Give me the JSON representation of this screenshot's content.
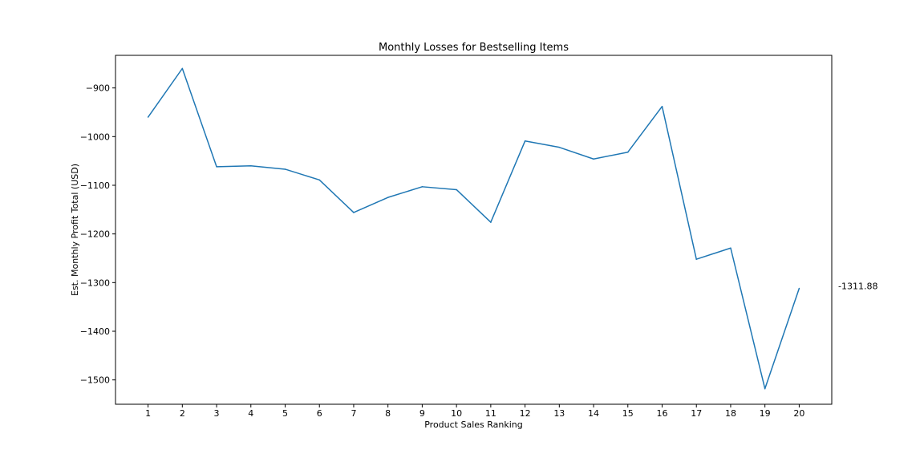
{
  "chart_data": {
    "type": "line",
    "title": "Monthly Losses for Bestselling Items",
    "xlabel": "Product Sales Ranking",
    "ylabel": "Est. Monthly Profit Total (USD)",
    "x": [
      1,
      2,
      3,
      4,
      5,
      6,
      7,
      8,
      9,
      10,
      11,
      12,
      13,
      14,
      15,
      16,
      17,
      18,
      19,
      20
    ],
    "series": [
      {
        "values": [
          -960,
          -860,
          -1062,
          -1060,
          -1067,
          -1089,
          -1156,
          -1125,
          -1103,
          -1109,
          -1176,
          -1009,
          -1022,
          -1046,
          -1032,
          -938,
          -1252,
          -1229,
          -1518,
          -1311.88
        ],
        "color": "#1f77b4"
      }
    ],
    "xlim": [
      0.05,
      20.95
    ],
    "ylim": [
      -1550,
      -833
    ],
    "yticks": [
      -1500,
      -1400,
      -1300,
      -1200,
      -1100,
      -1000,
      -900
    ],
    "ytick_labels": [
      "−1500",
      "−1400",
      "−1300",
      "−1200",
      "−1100",
      "−1000",
      "−900"
    ],
    "xtick_labels": [
      "1",
      "2",
      "3",
      "4",
      "5",
      "6",
      "7",
      "8",
      "9",
      "10",
      "11",
      "12",
      "13",
      "14",
      "15",
      "16",
      "17",
      "18",
      "19",
      "20"
    ],
    "annotations": [
      {
        "text": "-1311.88",
        "y": -1307
      }
    ],
    "grid": false,
    "legend": "none"
  }
}
